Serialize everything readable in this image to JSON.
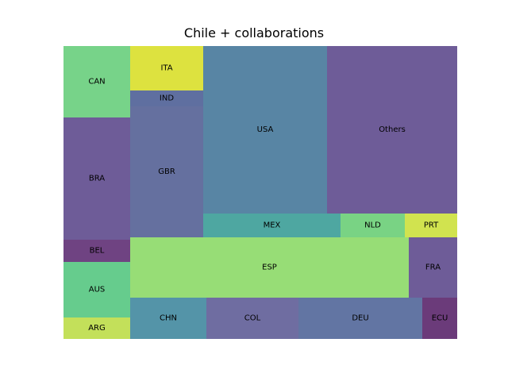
{
  "chart_data": {
    "type": "treemap",
    "title": "Chile + collaborations",
    "cells": [
      {
        "label": "CAN",
        "color": "#77d389"
      },
      {
        "label": "BRA",
        "color": "#6e5c98"
      },
      {
        "label": "BEL",
        "color": "#6f4382"
      },
      {
        "label": "AUS",
        "color": "#66cc8d"
      },
      {
        "label": "ARG",
        "color": "#c3e05a"
      },
      {
        "label": "ITA",
        "color": "#dde23f"
      },
      {
        "label": "IND",
        "color": "#5f6fa0"
      },
      {
        "label": "GBR",
        "color": "#65709f"
      },
      {
        "label": "USA",
        "color": "#5885a4"
      },
      {
        "label": "Others",
        "color": "#6e5c98"
      },
      {
        "label": "MEX",
        "color": "#4ea7a1"
      },
      {
        "label": "NLD",
        "color": "#79d384"
      },
      {
        "label": "PRT",
        "color": "#d1e34f"
      },
      {
        "label": "ESP",
        "color": "#97dd76"
      },
      {
        "label": "FRA",
        "color": "#6e5c98"
      },
      {
        "label": "CHN",
        "color": "#5494a8"
      },
      {
        "label": "COL",
        "color": "#6f6da1"
      },
      {
        "label": "DEU",
        "color": "#6275a3"
      },
      {
        "label": "ECU",
        "color": "#6b3b7a"
      }
    ]
  }
}
